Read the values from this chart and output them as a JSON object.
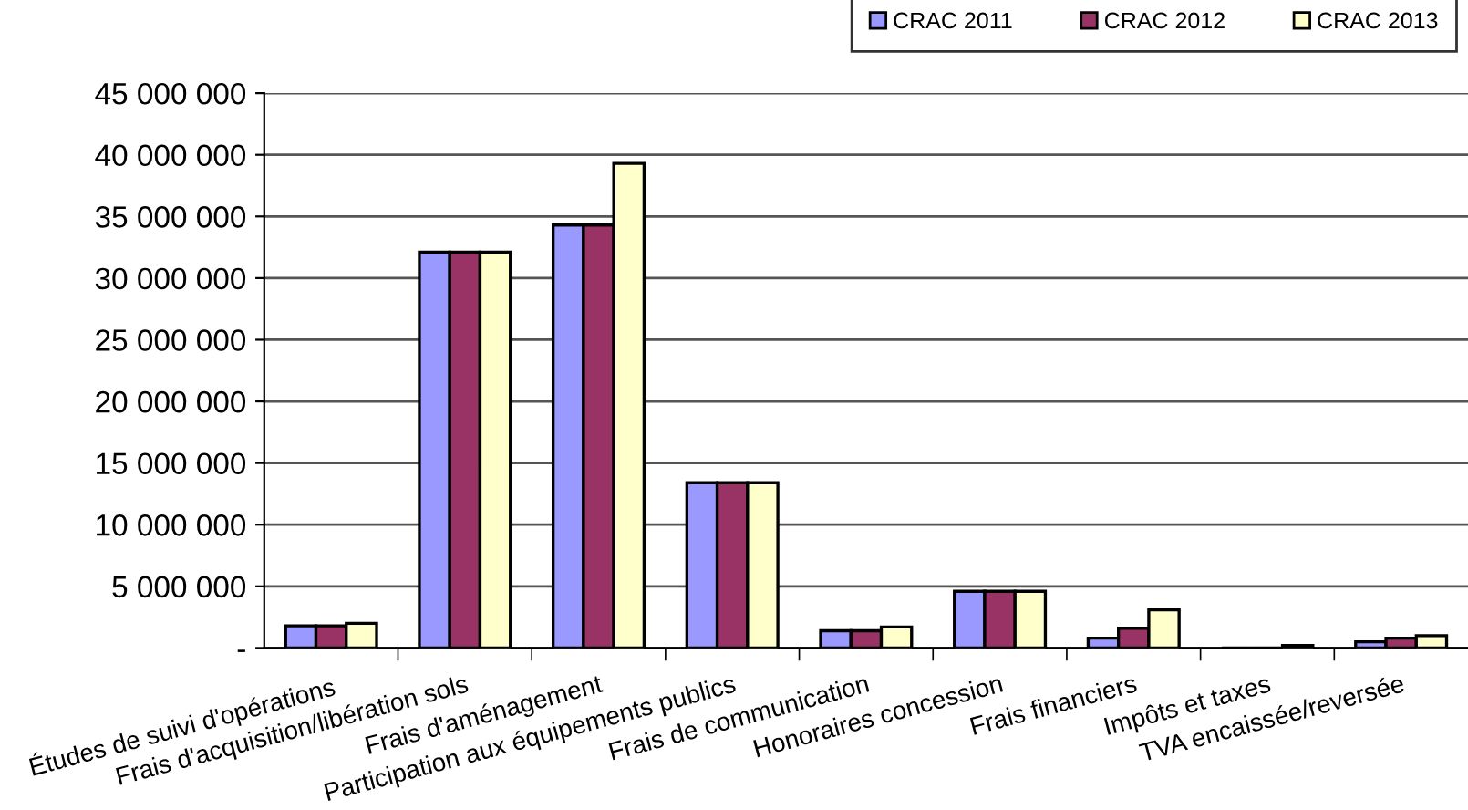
{
  "chart_data": {
    "type": "bar",
    "categories": [
      "Études de suivi d'opérations",
      "Frais d'acquisition/libération sols",
      "Frais d'aménagement",
      "Participation aux équipements publics",
      "Frais de communication",
      "Honoraires concession",
      "Frais financiers",
      "Impôts et taxes",
      "TVA encaissée/reversée"
    ],
    "series": [
      {
        "name": "CRAC 2011",
        "color": "#9999ff",
        "values": [
          1800000,
          32100000,
          34300000,
          13400000,
          1400000,
          4600000,
          800000,
          null,
          500000
        ]
      },
      {
        "name": "CRAC 2012",
        "color": "#993366",
        "values": [
          1800000,
          32100000,
          34300000,
          13400000,
          1400000,
          4600000,
          1600000,
          null,
          800000
        ]
      },
      {
        "name": "CRAC 2013",
        "color": "#ffffcc",
        "values": [
          2000000,
          32100000,
          39300000,
          13400000,
          1700000,
          4600000,
          3100000,
          200000,
          1000000
        ]
      }
    ],
    "ylim": [
      0,
      45000000
    ],
    "yticks": [
      {
        "value": 0,
        "label": "-"
      },
      {
        "value": 5000000,
        "label": "5 000 000"
      },
      {
        "value": 10000000,
        "label": "10 000 000"
      },
      {
        "value": 15000000,
        "label": "15 000 000"
      },
      {
        "value": 20000000,
        "label": "20 000 000"
      },
      {
        "value": 25000000,
        "label": "25 000 000"
      },
      {
        "value": 30000000,
        "label": "30 000 000"
      },
      {
        "value": 35000000,
        "label": "35 000 000"
      },
      {
        "value": 40000000,
        "label": "40 000 000"
      },
      {
        "value": 45000000,
        "label": "45 000 000"
      }
    ],
    "grid": "y",
    "legend": "top right"
  }
}
